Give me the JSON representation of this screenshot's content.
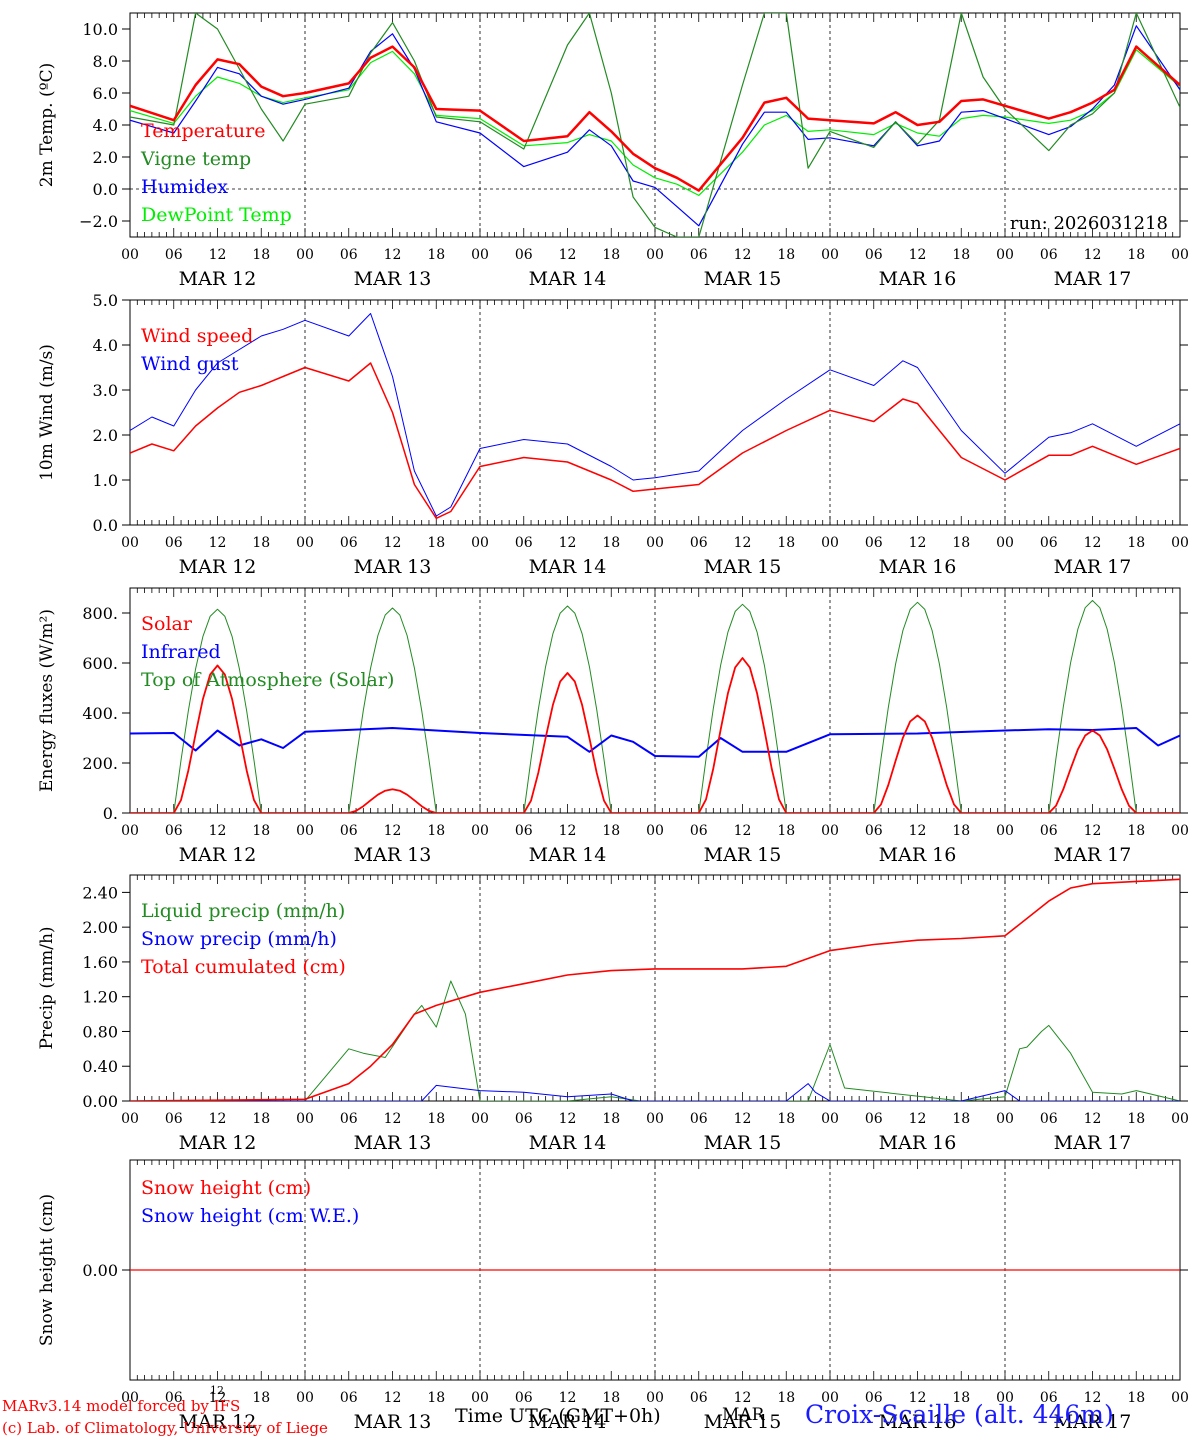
{
  "time_axis": {
    "hour_ticks": [
      "00",
      "06",
      "12",
      "18"
    ],
    "end_tick": "00",
    "days": [
      "MAR 12",
      "MAR 13",
      "MAR 14",
      "MAR 15",
      "MAR 16",
      "MAR 17"
    ]
  },
  "colors": {
    "red": "#ff0000",
    "green": "#228b22",
    "blue": "#0000ff",
    "lightgreen": "#00ee00",
    "station": "#1a1aff"
  },
  "footer": {
    "credit_line1": "MARv3.14 model forced by IFS",
    "credit_line2": "(c) Lab. of Climatology, University of Liege",
    "tiny_label": "12",
    "time_label": "Time UTC (GMT+0h)",
    "month_label": "MAR",
    "station": "Croix-Scaille (alt. 446m)"
  },
  "chart_data": [
    {
      "type": "line",
      "ylabel": "2m Temp. (ºC)",
      "ylim": [
        -3.0,
        11.0
      ],
      "yticks": [
        -2,
        0,
        2,
        4,
        6,
        8,
        10
      ],
      "ytick_labels": [
        "−2.0",
        "0.0",
        "2.0",
        "4.0",
        "6.0",
        "8.0",
        "10.0"
      ],
      "zero_line": true,
      "annotation": "run: 2026031218",
      "x_hours": [
        0,
        6,
        9,
        12,
        15,
        18,
        21,
        24,
        30,
        33,
        36,
        39,
        42,
        48,
        54,
        60,
        63,
        66,
        69,
        72,
        75,
        78,
        84,
        87,
        90,
        93,
        96,
        102,
        105,
        108,
        111,
        114,
        117,
        120,
        126,
        129,
        132,
        135,
        138,
        144
      ],
      "series": [
        {
          "name": "Temperature",
          "color": "red",
          "width": 2.5,
          "values": [
            5.2,
            4.3,
            6.5,
            8.1,
            7.8,
            6.4,
            5.8,
            6.0,
            6.6,
            8.2,
            8.9,
            7.6,
            5.0,
            4.9,
            3.0,
            3.3,
            4.8,
            3.6,
            2.2,
            1.3,
            0.7,
            -0.1,
            3.2,
            5.4,
            5.7,
            4.4,
            4.3,
            4.1,
            4.8,
            4.0,
            4.2,
            5.5,
            5.6,
            5.2,
            4.4,
            4.8,
            5.4,
            6.2,
            8.9,
            6.5
          ]
        },
        {
          "name": "Vigne temp",
          "color": "green",
          "width": 1.2,
          "values": [
            4.5,
            4.0,
            11.0,
            10.0,
            7.5,
            5.0,
            3.0,
            5.3,
            5.8,
            8.5,
            10.4,
            8.0,
            4.5,
            4.2,
            2.5,
            9.0,
            11.0,
            6.0,
            -0.5,
            -2.4,
            -3.0,
            -3.0,
            6.5,
            11.0,
            11.0,
            1.3,
            3.6,
            2.6,
            4.2,
            2.8,
            4.3,
            11.0,
            7.0,
            5.0,
            2.4,
            4.0,
            4.7,
            6.0,
            11.0,
            5.1
          ]
        },
        {
          "name": "Humidex",
          "color": "blue",
          "width": 1.2,
          "values": [
            4.3,
            3.5,
            5.5,
            7.6,
            7.2,
            5.8,
            5.3,
            5.6,
            6.3,
            8.6,
            9.7,
            7.5,
            4.2,
            3.5,
            1.4,
            2.3,
            3.7,
            2.7,
            0.5,
            0.1,
            -1.1,
            -2.3,
            2.8,
            4.8,
            4.8,
            3.1,
            3.2,
            2.7,
            4.2,
            2.7,
            3.0,
            4.8,
            4.9,
            4.4,
            3.4,
            3.9,
            5.0,
            6.5,
            10.2,
            6.2
          ]
        },
        {
          "name": "DewPoint Temp",
          "color": "lightgreen",
          "width": 1.2,
          "values": [
            4.9,
            4.1,
            5.8,
            7.0,
            6.6,
            5.8,
            5.4,
            5.7,
            6.2,
            7.9,
            8.6,
            7.2,
            4.6,
            4.4,
            2.7,
            2.9,
            3.4,
            3.0,
            1.5,
            0.7,
            0.3,
            -0.4,
            2.3,
            4.0,
            4.6,
            3.6,
            3.7,
            3.4,
            4.1,
            3.5,
            3.3,
            4.4,
            4.6,
            4.5,
            4.1,
            4.3,
            4.9,
            6.0,
            8.7,
            6.4
          ]
        }
      ],
      "legend": [
        "Temperature",
        "Vigne temp",
        "Humidex",
        "DewPoint Temp"
      ]
    },
    {
      "type": "line",
      "ylabel": "10m Wind (m/s)",
      "ylim": [
        0.0,
        5.0
      ],
      "yticks": [
        0,
        1,
        2,
        3,
        4,
        5
      ],
      "ytick_labels": [
        "0.0",
        "1.0",
        "2.0",
        "3.0",
        "4.0",
        "5.0"
      ],
      "x_hours": [
        0,
        3,
        6,
        9,
        12,
        15,
        18,
        21,
        24,
        30,
        33,
        36,
        39,
        42,
        44,
        48,
        54,
        60,
        66,
        69,
        72,
        78,
        84,
        90,
        96,
        102,
        106,
        108,
        114,
        120,
        126,
        129,
        132,
        138,
        144
      ],
      "series": [
        {
          "name": "Wind speed",
          "color": "red",
          "width": 1.5,
          "values": [
            1.6,
            1.8,
            1.65,
            2.2,
            2.6,
            2.95,
            3.1,
            3.3,
            3.5,
            3.2,
            3.6,
            2.5,
            0.9,
            0.15,
            0.3,
            1.3,
            1.5,
            1.4,
            1.0,
            0.75,
            0.8,
            0.9,
            1.6,
            2.1,
            2.55,
            2.3,
            2.8,
            2.7,
            1.5,
            1.0,
            1.55,
            1.55,
            1.75,
            1.35,
            1.7
          ]
        },
        {
          "name": "Wind gust",
          "color": "blue",
          "width": 1.0,
          "values": [
            2.1,
            2.4,
            2.2,
            3.0,
            3.6,
            3.9,
            4.2,
            4.35,
            4.55,
            4.2,
            4.7,
            3.3,
            1.2,
            0.2,
            0.4,
            1.7,
            1.9,
            1.8,
            1.3,
            1.0,
            1.05,
            1.2,
            2.1,
            2.8,
            3.45,
            3.1,
            3.65,
            3.5,
            2.1,
            1.15,
            1.95,
            2.05,
            2.25,
            1.75,
            2.25
          ]
        }
      ],
      "legend": [
        "Wind speed",
        "Wind gust"
      ]
    },
    {
      "type": "line",
      "ylabel": "Energy fluxes (W/m²)",
      "ylim": [
        0,
        900
      ],
      "yticks": [
        0,
        200,
        400,
        600,
        800
      ],
      "ytick_labels": [
        "0.",
        "200.",
        "400.",
        "600.",
        "800."
      ],
      "diurnal": {
        "sunrise": 6,
        "sunset": 18,
        "solar_peaks": [
          590,
          95,
          560,
          620,
          390,
          330
        ],
        "toa_peaks": [
          815,
          820,
          828,
          835,
          843,
          850
        ]
      },
      "infrared": {
        "x_hours": [
          0,
          6,
          9,
          12,
          15,
          18,
          21,
          24,
          36,
          48,
          60,
          63,
          66,
          69,
          72,
          78,
          81,
          84,
          90,
          96,
          108,
          120,
          126,
          132,
          138,
          141,
          144
        ],
        "values": [
          318,
          320,
          250,
          330,
          270,
          295,
          260,
          325,
          340,
          320,
          305,
          245,
          310,
          285,
          228,
          225,
          300,
          245,
          245,
          315,
          318,
          330,
          335,
          332,
          340,
          270,
          310
        ]
      },
      "series_names": [
        "Solar",
        "Infrared",
        "Top of Atmosphere (Solar)"
      ],
      "legend": [
        "Solar",
        "Infrared",
        "Top of Atmosphere (Solar)"
      ]
    },
    {
      "type": "line",
      "ylabel": "Precip (mm/h)",
      "ylim": [
        0.0,
        2.6
      ],
      "yticks": [
        0,
        0.4,
        0.8,
        1.2,
        1.6,
        2.0,
        2.4
      ],
      "ytick_labels": [
        "0.00",
        "0.40",
        "0.80",
        "1.20",
        "1.60",
        "2.00",
        "2.40"
      ],
      "liquid": {
        "x_hours": [
          0,
          20,
          24,
          27,
          30,
          32,
          35,
          39,
          40,
          42,
          44,
          46,
          48,
          60,
          66,
          70,
          93,
          96,
          98,
          114,
          120,
          122,
          123,
          125,
          126,
          129,
          132,
          136,
          138,
          144
        ],
        "values": [
          0,
          0,
          0,
          0.3,
          0.6,
          0.55,
          0.5,
          1.0,
          1.1,
          0.85,
          1.38,
          1.0,
          0,
          0,
          0.05,
          0,
          0,
          0.65,
          0.15,
          0,
          0.05,
          0.6,
          0.62,
          0.8,
          0.87,
          0.55,
          0.1,
          0.08,
          0.12,
          0
        ]
      },
      "snow": {
        "x_hours": [
          0,
          40,
          42,
          48,
          54,
          60,
          66,
          69,
          90,
          93,
          94,
          96,
          114,
          120,
          122,
          144
        ],
        "values": [
          0,
          0,
          0.18,
          0.12,
          0.1,
          0.05,
          0.08,
          0,
          0,
          0.2,
          0.1,
          0,
          0,
          0.12,
          0,
          0
        ]
      },
      "cumulated": {
        "x_hours": [
          0,
          24,
          30,
          33,
          36,
          39,
          42,
          48,
          54,
          60,
          66,
          72,
          84,
          90,
          96,
          102,
          108,
          114,
          120,
          126,
          129,
          132,
          144
        ],
        "values": [
          0,
          0.02,
          0.2,
          0.4,
          0.65,
          1.0,
          1.1,
          1.25,
          1.35,
          1.45,
          1.5,
          1.52,
          1.52,
          1.55,
          1.73,
          1.8,
          1.85,
          1.87,
          1.9,
          2.3,
          2.45,
          2.5,
          2.55
        ]
      },
      "legend": [
        "Liquid precip (mm/h)",
        "Snow precip (mm/h)",
        "Total cumulated (cm)"
      ]
    },
    {
      "type": "line",
      "ylabel": "Snow height (cm)",
      "ylim": [
        -1.0,
        1.0
      ],
      "yticks": [
        0
      ],
      "ytick_labels": [
        "0.00"
      ],
      "x_hours": [
        0,
        144
      ],
      "series": [
        {
          "name": "Snow height (cm)",
          "color": "red",
          "width": 1.2,
          "values": [
            0,
            0
          ]
        },
        {
          "name": "Snow height (cm W.E.)",
          "color": "blue",
          "width": 1.0,
          "values": [
            0,
            0
          ]
        }
      ],
      "legend": [
        "Snow height (cm)",
        "Snow height (cm W.E.)"
      ]
    }
  ]
}
